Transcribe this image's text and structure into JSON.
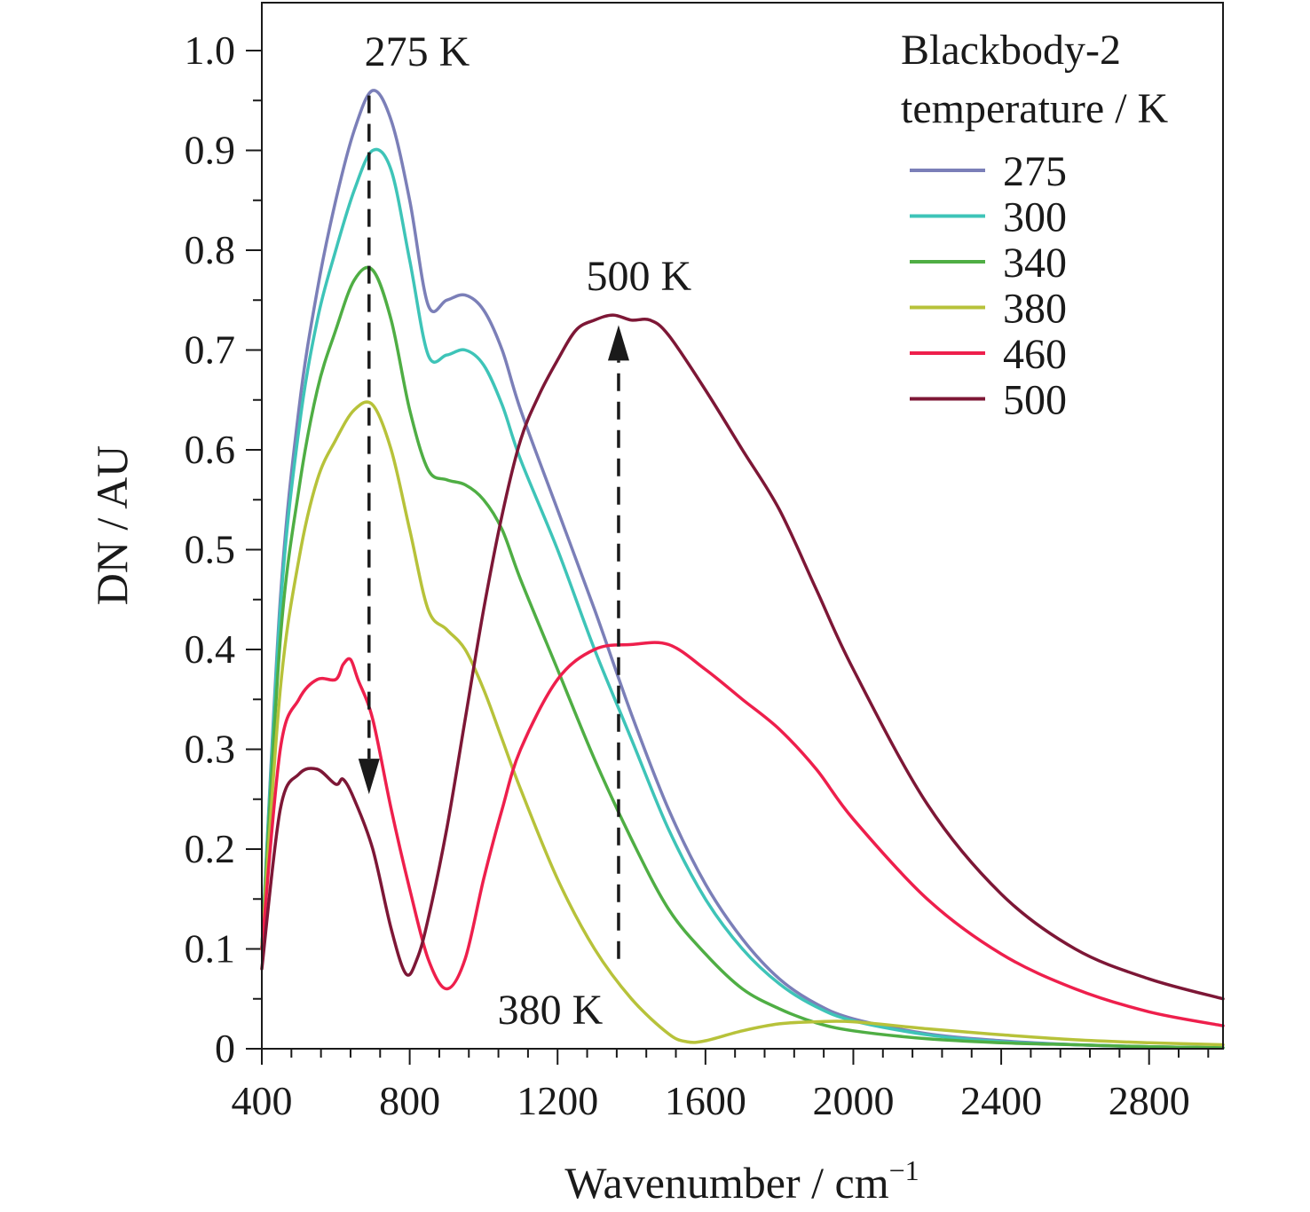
{
  "chart_data": {
    "type": "line",
    "xlabel_main": "Wavenumber / cm",
    "xlabel_sup": "−1",
    "ylabel": "DN / AU",
    "xlim": [
      400,
      3000
    ],
    "ylim": [
      0,
      1.0
    ],
    "x_ticks": [
      400,
      800,
      1200,
      1600,
      2000,
      2400,
      2800
    ],
    "x_tick_labels": [
      "400",
      "800",
      "1200",
      "1600",
      "2000",
      "2400",
      "2800"
    ],
    "y_ticks": [
      0,
      0.1,
      0.2,
      0.3,
      0.4,
      0.5,
      0.6,
      0.7,
      0.8,
      0.9,
      1.0
    ],
    "y_tick_labels": [
      "0",
      "0.1",
      "0.2",
      "0.3",
      "0.4",
      "0.5",
      "0.6",
      "0.7",
      "0.8",
      "0.9",
      "1.0"
    ],
    "legend": {
      "title_line1": "Blackbody-2",
      "title_line2": "temperature / K",
      "placement": "top-right"
    },
    "series": [
      {
        "name": "275",
        "color": "#7b7fb8",
        "x": [
          400,
          450,
          500,
          550,
          600,
          650,
          700,
          750,
          800,
          850,
          900,
          950,
          1000,
          1050,
          1100,
          1200,
          1300,
          1400,
          1500,
          1600,
          1700,
          1800,
          1900,
          2000,
          2200,
          2400,
          2600,
          2800,
          3000
        ],
        "y": [
          0.1,
          0.45,
          0.64,
          0.76,
          0.85,
          0.92,
          0.96,
          0.93,
          0.85,
          0.745,
          0.75,
          0.755,
          0.74,
          0.7,
          0.64,
          0.54,
          0.44,
          0.335,
          0.24,
          0.165,
          0.11,
          0.07,
          0.045,
          0.03,
          0.015,
          0.008,
          0.004,
          0.002,
          0.001
        ]
      },
      {
        "name": "300",
        "color": "#3ec4b8",
        "x": [
          400,
          450,
          500,
          550,
          600,
          650,
          700,
          750,
          800,
          850,
          900,
          950,
          1000,
          1050,
          1100,
          1200,
          1300,
          1400,
          1500,
          1600,
          1700,
          1800,
          1900,
          2000,
          2200,
          2400,
          2600,
          2800,
          3000
        ],
        "y": [
          0.1,
          0.44,
          0.62,
          0.73,
          0.8,
          0.86,
          0.9,
          0.88,
          0.79,
          0.695,
          0.695,
          0.7,
          0.685,
          0.645,
          0.59,
          0.5,
          0.4,
          0.31,
          0.22,
          0.15,
          0.1,
          0.065,
          0.042,
          0.028,
          0.014,
          0.007,
          0.004,
          0.002,
          0.001
        ]
      },
      {
        "name": "340",
        "color": "#4fae44",
        "x": [
          400,
          450,
          500,
          550,
          600,
          650,
          700,
          750,
          800,
          850,
          900,
          950,
          1000,
          1050,
          1100,
          1200,
          1300,
          1400,
          1500,
          1600,
          1700,
          1800,
          1900,
          2000,
          2200,
          2400,
          2600,
          2800,
          3000
        ],
        "y": [
          0.1,
          0.41,
          0.56,
          0.66,
          0.72,
          0.77,
          0.78,
          0.73,
          0.64,
          0.58,
          0.57,
          0.565,
          0.55,
          0.52,
          0.47,
          0.38,
          0.29,
          0.21,
          0.14,
          0.095,
          0.06,
          0.04,
          0.026,
          0.018,
          0.01,
          0.006,
          0.004,
          0.002,
          0.001
        ]
      },
      {
        "name": "380",
        "color": "#b7c23a",
        "x": [
          400,
          450,
          500,
          550,
          600,
          650,
          700,
          750,
          800,
          850,
          900,
          950,
          1000,
          1050,
          1100,
          1200,
          1300,
          1400,
          1500,
          1550,
          1600,
          1700,
          1800,
          1900,
          2000,
          2200,
          2400,
          2600,
          2800,
          3000
        ],
        "y": [
          0.1,
          0.36,
          0.49,
          0.57,
          0.61,
          0.64,
          0.645,
          0.6,
          0.52,
          0.44,
          0.42,
          0.4,
          0.36,
          0.31,
          0.26,
          0.17,
          0.1,
          0.05,
          0.015,
          0.007,
          0.008,
          0.018,
          0.025,
          0.027,
          0.027,
          0.02,
          0.014,
          0.009,
          0.006,
          0.004
        ]
      },
      {
        "name": "460",
        "color": "#ee1f4c",
        "x": [
          400,
          450,
          500,
          550,
          600,
          620,
          640,
          660,
          700,
          750,
          800,
          850,
          900,
          950,
          1000,
          1050,
          1100,
          1200,
          1300,
          1400,
          1500,
          1600,
          1700,
          1800,
          1900,
          2000,
          2200,
          2400,
          2600,
          2800,
          3000
        ],
        "y": [
          0.1,
          0.3,
          0.35,
          0.37,
          0.37,
          0.385,
          0.39,
          0.37,
          0.33,
          0.24,
          0.16,
          0.09,
          0.06,
          0.09,
          0.17,
          0.24,
          0.3,
          0.37,
          0.4,
          0.405,
          0.405,
          0.38,
          0.35,
          0.32,
          0.28,
          0.23,
          0.15,
          0.095,
          0.06,
          0.037,
          0.023
        ]
      },
      {
        "name": "500",
        "color": "#7d1736",
        "x": [
          400,
          450,
          500,
          550,
          600,
          620,
          650,
          700,
          750,
          790,
          820,
          850,
          900,
          950,
          1000,
          1050,
          1100,
          1150,
          1200,
          1250,
          1300,
          1350,
          1400,
          1450,
          1500,
          1600,
          1700,
          1800,
          1900,
          2000,
          2200,
          2400,
          2600,
          2800,
          3000
        ],
        "y": [
          0.08,
          0.24,
          0.275,
          0.28,
          0.265,
          0.27,
          0.25,
          0.2,
          0.12,
          0.075,
          0.09,
          0.13,
          0.22,
          0.33,
          0.44,
          0.535,
          0.61,
          0.655,
          0.69,
          0.72,
          0.73,
          0.735,
          0.73,
          0.73,
          0.715,
          0.66,
          0.6,
          0.54,
          0.46,
          0.38,
          0.245,
          0.155,
          0.1,
          0.07,
          0.05
        ]
      }
    ],
    "annotations": [
      {
        "text": "275 K",
        "x": 820,
        "y": 0.985
      },
      {
        "text": "500 K",
        "x": 1420,
        "y": 0.76
      },
      {
        "text": "380 K",
        "x": 1180,
        "y": 0.025
      }
    ],
    "arrows": [
      {
        "x": 690,
        "y_from": 0.955,
        "y_to": 0.255,
        "direction": "down"
      },
      {
        "x": 1365,
        "y_from": 0.09,
        "y_to": 0.725,
        "direction": "up"
      }
    ]
  }
}
